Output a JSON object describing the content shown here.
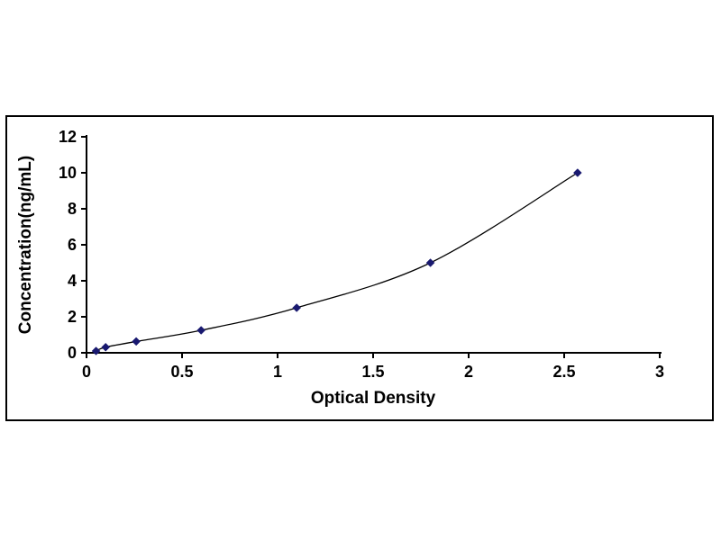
{
  "chart_data": {
    "type": "scatter",
    "subtype": "scatter-with-smooth-line",
    "title": "",
    "xlabel": "Optical Density",
    "ylabel": "Concentration(ng/mL)",
    "x": [
      0.05,
      0.1,
      0.26,
      0.6,
      1.1,
      1.8,
      2.57
    ],
    "y": [
      0.1,
      0.31,
      0.63,
      1.25,
      2.5,
      5.0,
      10.0
    ],
    "xlim": [
      0,
      3
    ],
    "ylim": [
      0,
      12
    ],
    "xticks": [
      0,
      0.5,
      1,
      1.5,
      2,
      2.5,
      3
    ],
    "xtick_labels": [
      "0",
      "0.5",
      "1",
      "1.5",
      "2",
      "2.5",
      "3"
    ],
    "yticks": [
      0,
      2,
      4,
      6,
      8,
      10,
      12
    ],
    "ytick_labels": [
      "0",
      "2",
      "4",
      "6",
      "8",
      "10",
      "12"
    ],
    "grid": false,
    "legend": "none",
    "marker_shape": "diamond",
    "marker_color": "#191970",
    "line_color": "#000000",
    "axis_color": "#000000",
    "frame_border_color": "#000000",
    "background_color": "#ffffff"
  }
}
